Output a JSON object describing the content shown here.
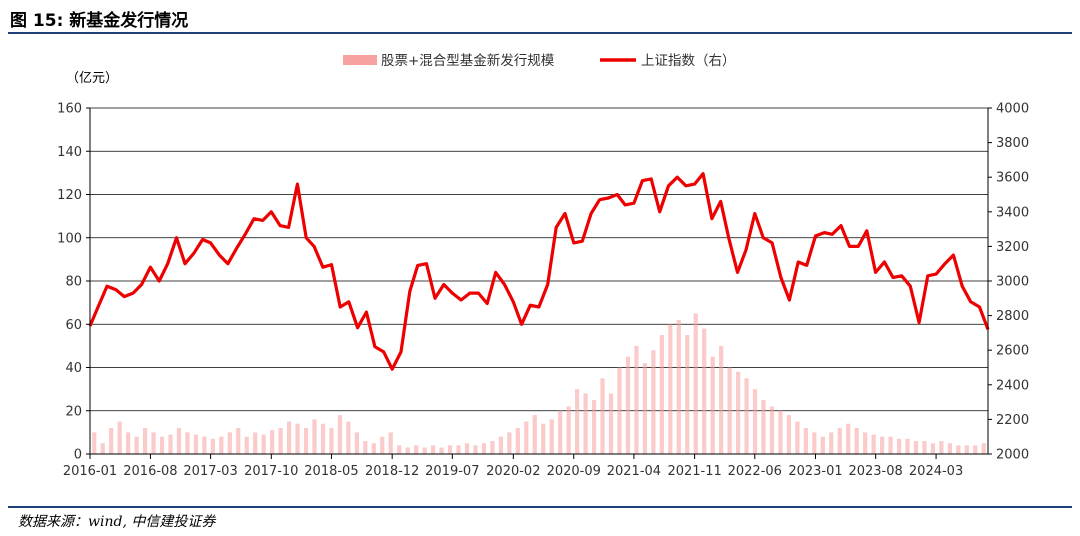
{
  "figure": {
    "title": "图 15: 新基金发行情况",
    "source": "数据来源：wind,  中信建投证券"
  },
  "chart_data": {
    "type": "bar+line",
    "left_unit_label": "（亿元）",
    "legend": [
      {
        "label": "股票+混合型基金新发行规模",
        "type": "bar",
        "color": "#f7a1a1"
      },
      {
        "label": "上证指数（右）",
        "type": "line",
        "color": "#ee0000"
      }
    ],
    "legend_position": "top",
    "grid": "horizontal",
    "y_left": {
      "min": 0,
      "max": 160,
      "ticks": [
        "0",
        "20",
        "40",
        "60",
        "80",
        "100",
        "120",
        "140",
        "160"
      ]
    },
    "y_right": {
      "min": 2000,
      "max": 4000,
      "ticks": [
        "2000",
        "2200",
        "2400",
        "2600",
        "2800",
        "3000",
        "3200",
        "3400",
        "3600",
        "3800",
        "4000"
      ]
    },
    "x": {
      "start": "2016-01",
      "end": "2024-08",
      "ticks": [
        "2016-01",
        "2016-08",
        "2017-03",
        "2017-10",
        "2018-05",
        "2018-12",
        "2019-07",
        "2020-02",
        "2020-09",
        "2021-04",
        "2021-11",
        "2022-06",
        "2023-01",
        "2023-08",
        "2024-03"
      ]
    },
    "series": [
      {
        "name": "股票+混合型基金新发行规模",
        "axis": "left",
        "kind": "bar",
        "monthly_approx": [
          10,
          5,
          12,
          15,
          10,
          8,
          12,
          10,
          8,
          9,
          12,
          10,
          9,
          8,
          7,
          8,
          10,
          12,
          8,
          10,
          9,
          11,
          12,
          15,
          14,
          12,
          16,
          14,
          12,
          18,
          15,
          10,
          6,
          5,
          8,
          10,
          4,
          3,
          4,
          3,
          4,
          3,
          4,
          4,
          5,
          4,
          5,
          6,
          8,
          10,
          12,
          15,
          18,
          14,
          16,
          20,
          22,
          30,
          28,
          25,
          35,
          28,
          40,
          45,
          50,
          42,
          48,
          55,
          60,
          62,
          55,
          65,
          58,
          45,
          50,
          40,
          38,
          35,
          30,
          25,
          22,
          20,
          18,
          15,
          12,
          10,
          8,
          10,
          12,
          14,
          12,
          10,
          9,
          8,
          8,
          7,
          7,
          6,
          6,
          5,
          6,
          5,
          4,
          4,
          4,
          5
        ]
      },
      {
        "name": "上证指数（右）",
        "axis": "right",
        "kind": "line",
        "points": [
          [
            "2016-01",
            2740
          ],
          [
            "2016-02",
            2860
          ],
          [
            "2016-03",
            2970
          ],
          [
            "2016-04",
            2950
          ],
          [
            "2016-05",
            2910
          ],
          [
            "2016-06",
            2930
          ],
          [
            "2016-07",
            2980
          ],
          [
            "2016-08",
            3080
          ],
          [
            "2016-09",
            3000
          ],
          [
            "2016-10",
            3100
          ],
          [
            "2016-11",
            3250
          ],
          [
            "2016-12",
            3100
          ],
          [
            "2017-01",
            3160
          ],
          [
            "2017-02",
            3240
          ],
          [
            "2017-03",
            3220
          ],
          [
            "2017-04",
            3150
          ],
          [
            "2017-05",
            3100
          ],
          [
            "2017-06",
            3190
          ],
          [
            "2017-07",
            3270
          ],
          [
            "2017-08",
            3360
          ],
          [
            "2017-09",
            3350
          ],
          [
            "2017-10",
            3400
          ],
          [
            "2017-11",
            3320
          ],
          [
            "2017-12",
            3310
          ],
          [
            "2018-01",
            3560
          ],
          [
            "2018-02",
            3250
          ],
          [
            "2018-03",
            3200
          ],
          [
            "2018-04",
            3080
          ],
          [
            "2018-05",
            3095
          ],
          [
            "2018-06",
            2850
          ],
          [
            "2018-07",
            2880
          ],
          [
            "2018-08",
            2730
          ],
          [
            "2018-09",
            2820
          ],
          [
            "2018-10",
            2620
          ],
          [
            "2018-11",
            2590
          ],
          [
            "2018-12",
            2490
          ],
          [
            "2019-01",
            2590
          ],
          [
            "2019-02",
            2940
          ],
          [
            "2019-03",
            3090
          ],
          [
            "2019-04",
            3100
          ],
          [
            "2019-05",
            2900
          ],
          [
            "2019-06",
            2980
          ],
          [
            "2019-07",
            2930
          ],
          [
            "2019-08",
            2890
          ],
          [
            "2019-09",
            2930
          ],
          [
            "2019-10",
            2930
          ],
          [
            "2019-11",
            2870
          ],
          [
            "2019-12",
            3050
          ],
          [
            "2020-01",
            2980
          ],
          [
            "2020-02",
            2880
          ],
          [
            "2020-03",
            2750
          ],
          [
            "2020-04",
            2860
          ],
          [
            "2020-05",
            2850
          ],
          [
            "2020-06",
            2980
          ],
          [
            "2020-07",
            3310
          ],
          [
            "2020-08",
            3390
          ],
          [
            "2020-09",
            3220
          ],
          [
            "2020-10",
            3230
          ],
          [
            "2020-11",
            3390
          ],
          [
            "2020-12",
            3470
          ],
          [
            "2021-01",
            3480
          ],
          [
            "2021-02",
            3500
          ],
          [
            "2021-03",
            3440
          ],
          [
            "2021-04",
            3450
          ],
          [
            "2021-05",
            3580
          ],
          [
            "2021-06",
            3590
          ],
          [
            "2021-07",
            3400
          ],
          [
            "2021-08",
            3550
          ],
          [
            "2021-09",
            3600
          ],
          [
            "2021-10",
            3550
          ],
          [
            "2021-11",
            3560
          ],
          [
            "2021-12",
            3620
          ],
          [
            "2022-01",
            3360
          ],
          [
            "2022-02",
            3460
          ],
          [
            "2022-03",
            3250
          ],
          [
            "2022-04",
            3050
          ],
          [
            "2022-05",
            3180
          ],
          [
            "2022-06",
            3390
          ],
          [
            "2022-07",
            3250
          ],
          [
            "2022-08",
            3220
          ],
          [
            "2022-09",
            3020
          ],
          [
            "2022-10",
            2890
          ],
          [
            "2022-11",
            3110
          ],
          [
            "2022-12",
            3090
          ],
          [
            "2023-01",
            3260
          ],
          [
            "2023-02",
            3280
          ],
          [
            "2023-03",
            3270
          ],
          [
            "2023-04",
            3320
          ],
          [
            "2023-05",
            3200
          ],
          [
            "2023-06",
            3200
          ],
          [
            "2023-07",
            3290
          ],
          [
            "2023-08",
            3050
          ],
          [
            "2023-09",
            3110
          ],
          [
            "2023-10",
            3020
          ],
          [
            "2023-11",
            3030
          ],
          [
            "2023-12",
            2970
          ],
          [
            "2024-01",
            2760
          ],
          [
            "2024-02",
            3030
          ],
          [
            "2024-03",
            3040
          ],
          [
            "2024-04",
            3100
          ],
          [
            "2024-05",
            3150
          ],
          [
            "2024-06",
            2970
          ],
          [
            "2024-07",
            2880
          ],
          [
            "2024-08",
            2850
          ],
          [
            "2024-08-31",
            2720
          ]
        ]
      }
    ]
  }
}
